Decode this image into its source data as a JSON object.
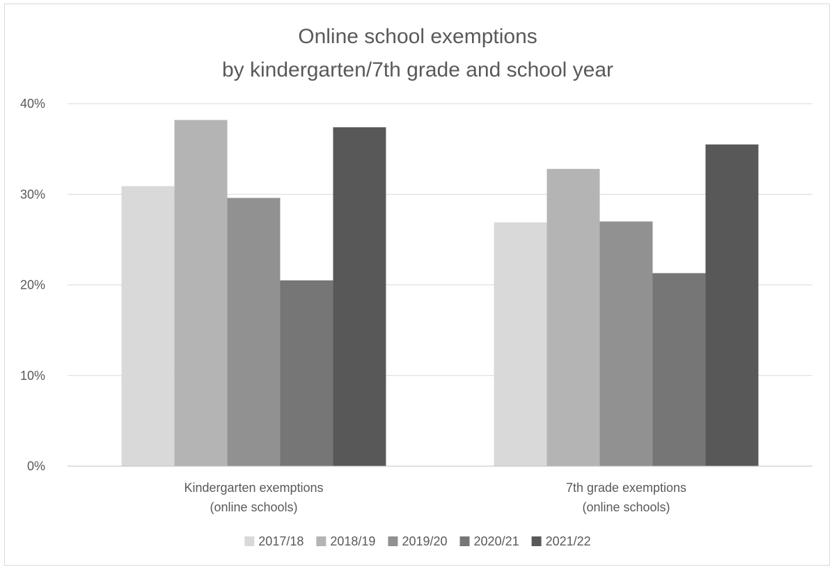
{
  "chart_data": {
    "type": "bar",
    "title": [
      "Online school exemptions",
      "by kindergarten/7th grade and school year"
    ],
    "categories": [
      [
        "Kindergarten exemptions",
        "(online schools)"
      ],
      [
        "7th grade exemptions",
        "(online schools)"
      ]
    ],
    "series": [
      {
        "name": "2017/18",
        "color": "#d9d9d9",
        "values": [
          30.9,
          26.9
        ]
      },
      {
        "name": "2018/19",
        "color": "#b4b4b4",
        "values": [
          38.2,
          32.8
        ]
      },
      {
        "name": "2019/20",
        "color": "#919191",
        "values": [
          29.6,
          27.0
        ]
      },
      {
        "name": "2020/21",
        "color": "#767676",
        "values": [
          20.5,
          21.3
        ]
      },
      {
        "name": "2021/22",
        "color": "#585858",
        "values": [
          37.4,
          35.5
        ]
      }
    ],
    "yaxis": {
      "ticks": [
        0,
        10,
        20,
        30,
        40
      ],
      "tick_labels": [
        "0%",
        "10%",
        "20%",
        "30%",
        "40%"
      ],
      "ylim": [
        0,
        40
      ]
    },
    "grid": true,
    "legend_position": "bottom"
  }
}
